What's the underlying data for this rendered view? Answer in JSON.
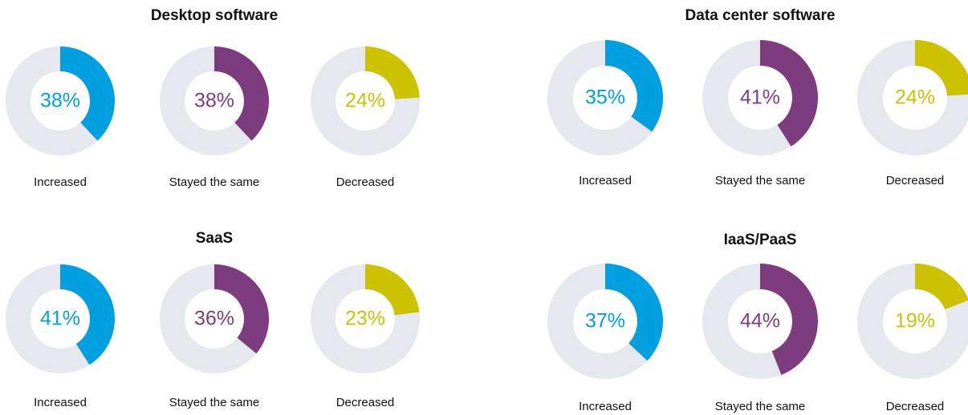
{
  "chart_data": [
    {
      "type": "donut",
      "title": "Desktop software",
      "categories": [
        "Increased",
        "Stayed the same",
        "Decreased"
      ],
      "values": [
        38,
        38,
        24
      ],
      "value_labels": [
        "38%",
        "38%",
        "24%"
      ],
      "colors": [
        "#009fe0",
        "#7d3c7d",
        "#ccc200"
      ],
      "track_color": "#e6e8ef"
    },
    {
      "type": "donut",
      "title": "Data center software",
      "categories": [
        "Increased",
        "Stayed the same",
        "Decreased"
      ],
      "values": [
        35,
        41,
        24
      ],
      "value_labels": [
        "35%",
        "41%",
        "24%"
      ],
      "colors": [
        "#009fe0",
        "#7d3c7d",
        "#ccc200"
      ],
      "track_color": "#e6e8ef"
    },
    {
      "type": "donut",
      "title": "SaaS",
      "categories": [
        "Increased",
        "Stayed the same",
        "Decreased"
      ],
      "values": [
        41,
        36,
        23
      ],
      "value_labels": [
        "41%",
        "36%",
        "23%"
      ],
      "colors": [
        "#009fe0",
        "#7d3c7d",
        "#ccc200"
      ],
      "track_color": "#e6e8ef"
    },
    {
      "type": "donut",
      "title": "IaaS/PaaS",
      "categories": [
        "Increased",
        "Stayed the same",
        "Decreased"
      ],
      "values": [
        37,
        44,
        19
      ],
      "value_labels": [
        "37%",
        "44%",
        "19%"
      ],
      "colors": [
        "#009fe0",
        "#7d3c7d",
        "#ccc200"
      ],
      "track_color": "#e6e8ef"
    }
  ]
}
